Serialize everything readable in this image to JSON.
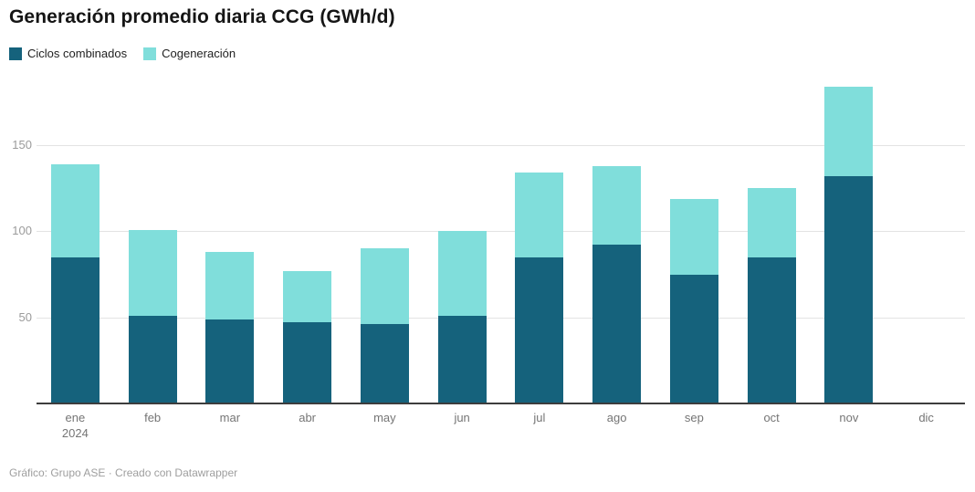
{
  "chart": {
    "title": "Generación promedio diaria CCG (GWh/d)",
    "footer": "Gráfico: Grupo ASE · Creado con Datawrapper"
  },
  "chart_data": {
    "type": "bar",
    "stacked": true,
    "title": "Generación promedio diaria CCG (GWh/d)",
    "xlabel": "",
    "ylabel": "GWh/d",
    "categories": [
      "ene",
      "feb",
      "mar",
      "abr",
      "may",
      "jun",
      "jul",
      "ago",
      "sep",
      "oct",
      "nov",
      "dic"
    ],
    "year_label": "2024",
    "yticks": [
      50,
      100,
      150
    ],
    "ylim": [
      0,
      190
    ],
    "grid": true,
    "legend_position": "top-left",
    "series": [
      {
        "name": "Ciclos combinados",
        "color": "#15627c",
        "values": [
          85,
          51,
          49,
          47,
          46,
          51,
          85,
          92,
          75,
          85,
          132,
          0
        ]
      },
      {
        "name": "Cogeneración",
        "color": "#80dedb",
        "values": [
          54,
          50,
          39,
          30,
          44,
          49,
          49,
          46,
          44,
          40,
          52,
          0
        ]
      }
    ],
    "totals": [
      139,
      101,
      88,
      77,
      90,
      100,
      134,
      138,
      119,
      125,
      184,
      0
    ]
  }
}
